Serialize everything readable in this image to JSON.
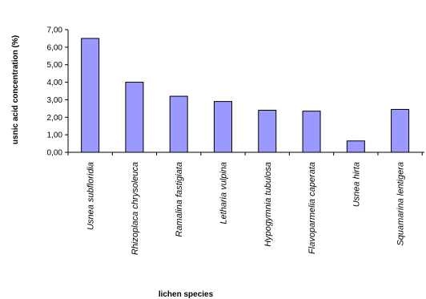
{
  "chart_data": {
    "type": "bar",
    "title": "",
    "xlabel": "lichen species",
    "ylabel": "usnic acid concentration (%)",
    "categories": [
      "Usnea subfloridia",
      "Rhizoplaca chrysoleuca",
      "Ramalina fastigiata",
      "Letharia vulpina",
      "Hypogymnia tubulosa",
      "Flavoparmelia caperata",
      "Usnea hirta",
      "Squamarina lentigera"
    ],
    "values": [
      6.5,
      4.0,
      3.2,
      2.9,
      2.4,
      2.35,
      0.65,
      2.45
    ],
    "ylim": [
      0,
      7
    ],
    "yticks": [
      "0,00",
      "1,00",
      "2,00",
      "3,00",
      "4,00",
      "5,00",
      "6,00",
      "7,00"
    ],
    "grid": false,
    "legend": "none",
    "colors": {
      "bar_fill": "#9999ff",
      "bar_stroke": "#000000"
    }
  }
}
